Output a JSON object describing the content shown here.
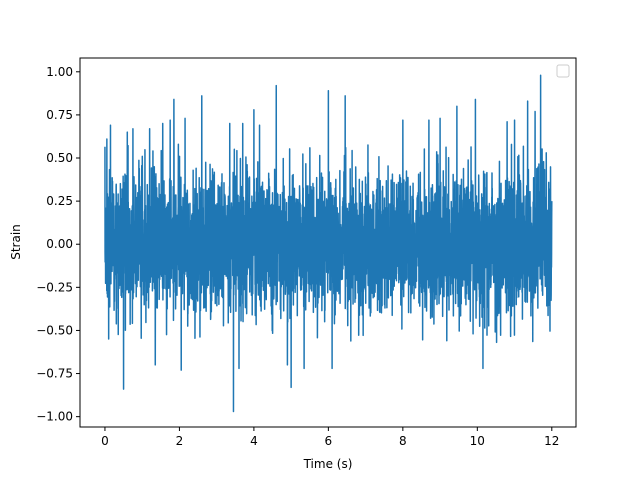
{
  "chart_data": {
    "type": "line",
    "title": "",
    "xlabel": "Time (s)",
    "ylabel": "Strain",
    "xlim": [
      -0.67,
      12.65
    ],
    "ylim": [
      -1.06,
      1.08
    ],
    "xticks": [
      0,
      2,
      4,
      6,
      8,
      10,
      12
    ],
    "xtick_labels": [
      "0",
      "2",
      "4",
      "6",
      "8",
      "10",
      "12"
    ],
    "yticks": [
      -1.0,
      -0.75,
      -0.5,
      -0.25,
      0.0,
      0.25,
      0.5,
      0.75,
      1.0
    ],
    "ytick_labels": [
      "−1.00",
      "−0.75",
      "−0.50",
      "−0.25",
      "0.00",
      "0.25",
      "0.50",
      "0.75",
      "1.00"
    ],
    "grid": false,
    "legend": {
      "location": "upper right",
      "entries": []
    },
    "series": [
      {
        "color": "#1f77b4",
        "x_range": [
          0,
          12.0
        ],
        "envelope_typical": [
          -0.57,
          0.58
        ],
        "spikes": [
          {
            "x": 0.05,
            "y": 0.61
          },
          {
            "x": 0.1,
            "y": -0.55
          },
          {
            "x": 0.15,
            "y": 0.69
          },
          {
            "x": 0.5,
            "y": -0.84
          },
          {
            "x": 0.6,
            "y": 0.65
          },
          {
            "x": 0.75,
            "y": 0.67
          },
          {
            "x": 1.2,
            "y": 0.67
          },
          {
            "x": 1.35,
            "y": -0.7
          },
          {
            "x": 1.55,
            "y": 0.7
          },
          {
            "x": 1.75,
            "y": 0.72
          },
          {
            "x": 1.85,
            "y": 0.84
          },
          {
            "x": 2.05,
            "y": -0.73
          },
          {
            "x": 2.15,
            "y": 0.73
          },
          {
            "x": 2.6,
            "y": 0.86
          },
          {
            "x": 3.35,
            "y": 0.7
          },
          {
            "x": 3.45,
            "y": -0.97
          },
          {
            "x": 3.6,
            "y": -0.72
          },
          {
            "x": 3.7,
            "y": 0.7
          },
          {
            "x": 4.0,
            "y": 0.78
          },
          {
            "x": 4.15,
            "y": 0.69
          },
          {
            "x": 4.6,
            "y": 0.92
          },
          {
            "x": 4.9,
            "y": -0.7
          },
          {
            "x": 5.0,
            "y": -0.83
          },
          {
            "x": 5.35,
            "y": -0.72
          },
          {
            "x": 6.0,
            "y": 0.89
          },
          {
            "x": 6.1,
            "y": -0.72
          },
          {
            "x": 6.45,
            "y": 0.86
          },
          {
            "x": 8.0,
            "y": 0.72
          },
          {
            "x": 8.7,
            "y": 0.72
          },
          {
            "x": 9.0,
            "y": 0.73
          },
          {
            "x": 9.45,
            "y": 0.8
          },
          {
            "x": 9.95,
            "y": 0.84
          },
          {
            "x": 10.15,
            "y": -0.72
          },
          {
            "x": 10.8,
            "y": 0.71
          },
          {
            "x": 11.0,
            "y": 0.72
          },
          {
            "x": 11.35,
            "y": 0.83
          },
          {
            "x": 11.55,
            "y": 0.77
          },
          {
            "x": 11.7,
            "y": 0.98
          },
          {
            "x": 11.85,
            "y": 0.53
          },
          {
            "x": 12.0,
            "y": 0.25
          }
        ]
      }
    ]
  }
}
